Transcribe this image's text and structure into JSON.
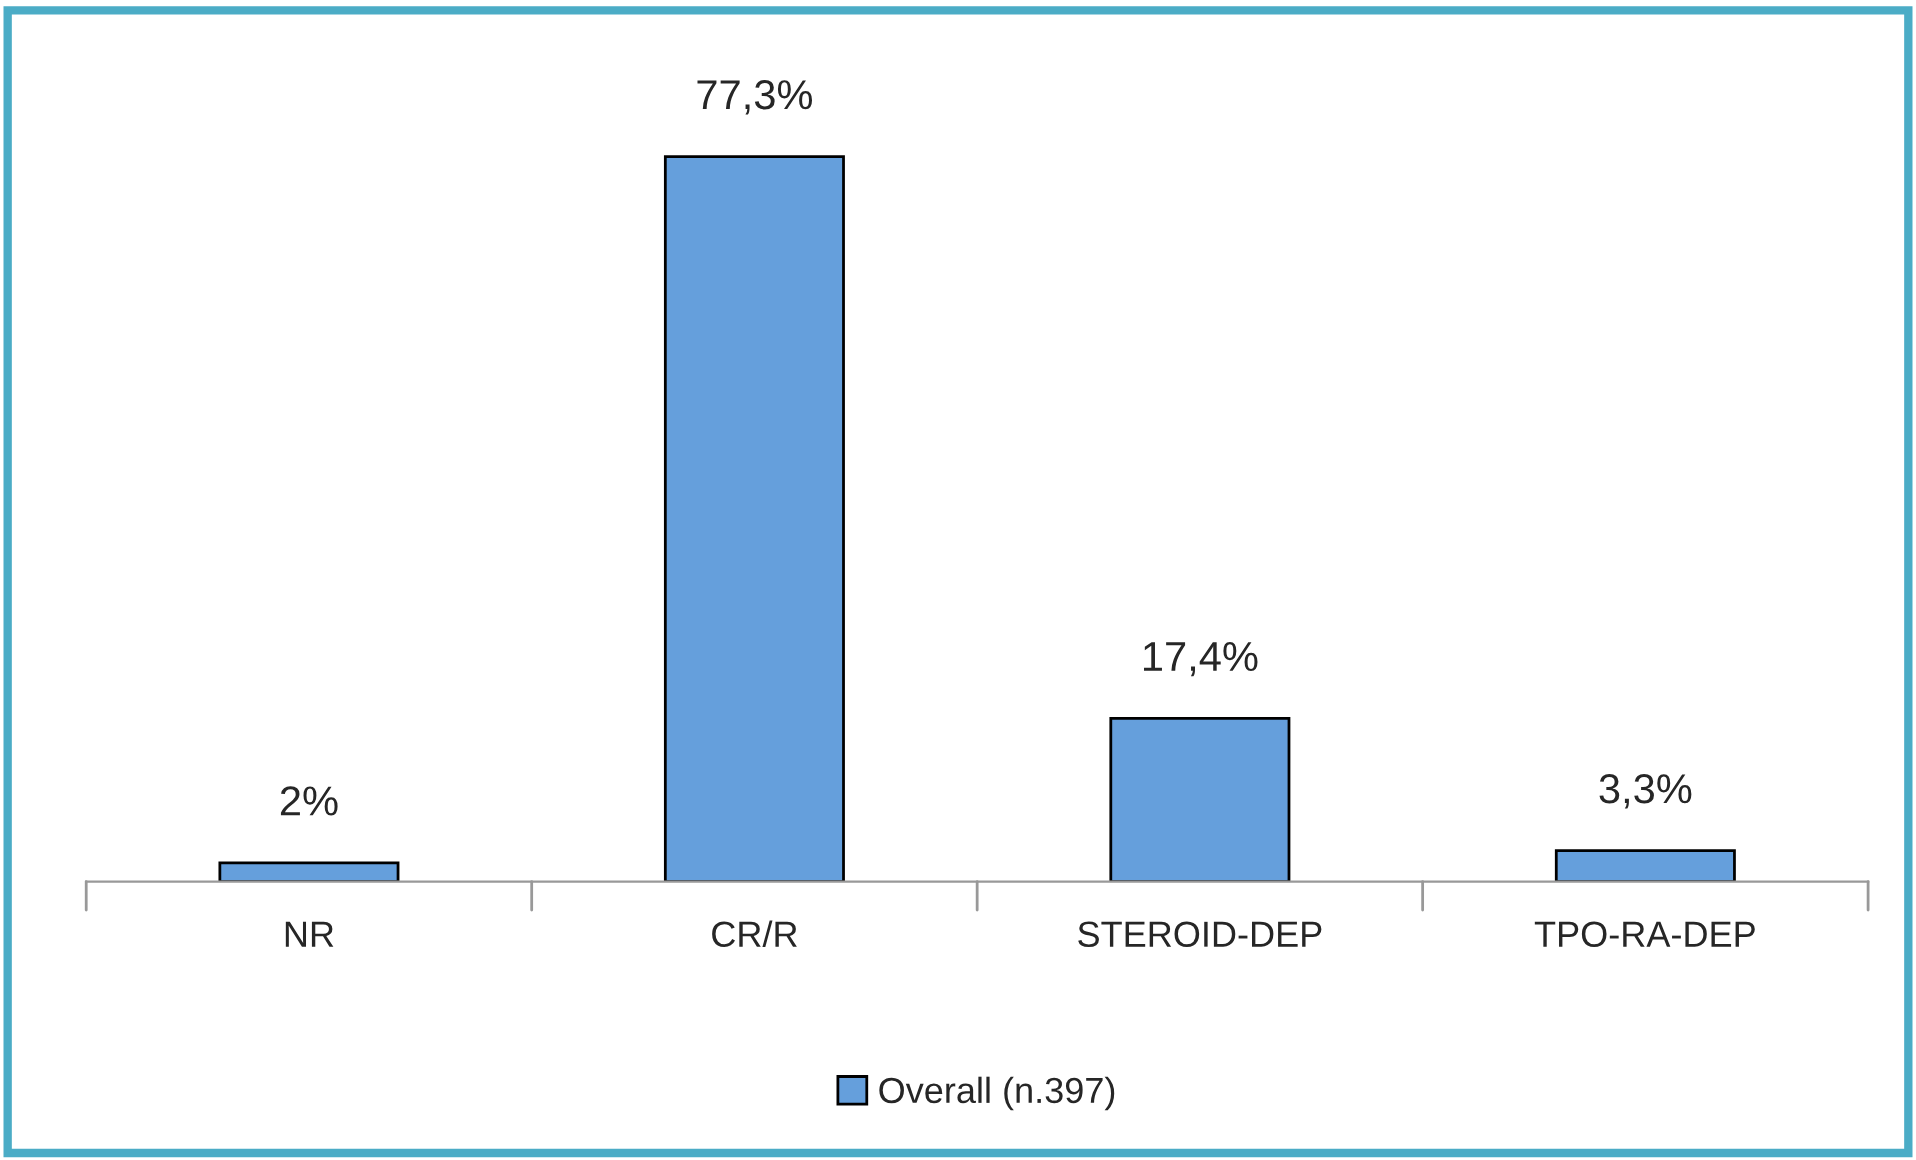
{
  "chart_data": {
    "type": "bar",
    "categories": [
      "NR",
      "CR/R",
      "STEROID-DEP",
      "TPO-RA-DEP"
    ],
    "series": [
      {
        "name": "Overall (n.397)",
        "color": "#659fdc",
        "values": [
          2,
          77.3,
          17.4,
          3.3
        ],
        "value_labels": [
          "2%",
          "77,3%",
          "17,4%",
          "3,3%"
        ]
      }
    ],
    "legend": "bottom",
    "grid": false
  }
}
